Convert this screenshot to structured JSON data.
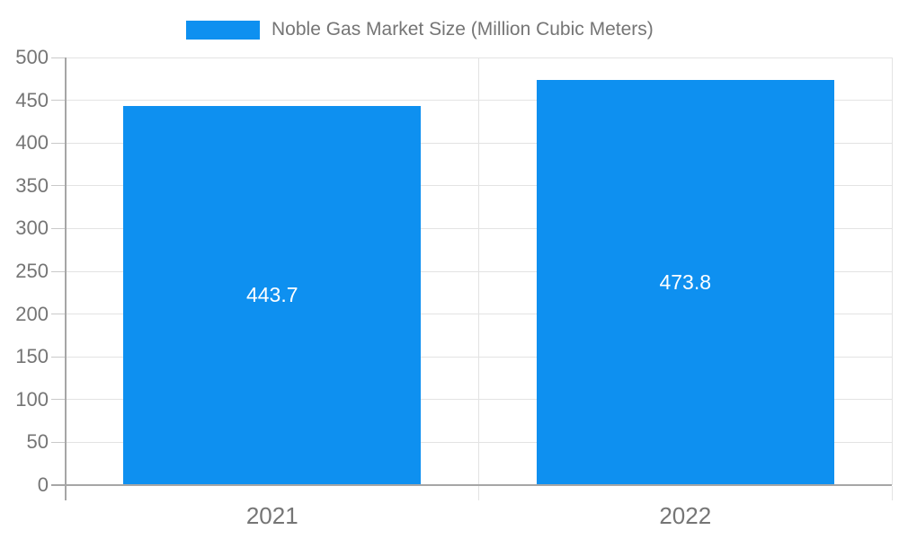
{
  "legend": {
    "label": "Noble Gas Market Size (Million Cubic Meters)"
  },
  "colors": {
    "bar": "#0E90F0",
    "grid_line": "#e3e3e3",
    "axis_line": "#a6a6a6",
    "tick_line": "#c9c9c9",
    "axis_label_text": "#757575",
    "bar_label_text": "#ffffff",
    "background": "#ffffff"
  },
  "chart_data": {
    "type": "bar",
    "title": "Noble Gas Market Size (Million Cubic Meters)",
    "categories": [
      "2021",
      "2022"
    ],
    "series": [
      {
        "name": "Noble Gas Market Size (Million Cubic Meters)",
        "values": [
          443.7,
          473.8
        ],
        "color": "#0E90F0"
      }
    ],
    "value_labels": [
      "443.7",
      "473.8"
    ],
    "xlabel": "",
    "ylabel": "",
    "ylim": [
      0,
      500
    ],
    "ytick_step": 50,
    "yticks": [
      0,
      50,
      100,
      150,
      200,
      250,
      300,
      350,
      400,
      450,
      500
    ],
    "grid": true,
    "legend_position": "top-center",
    "bar_label_position": "inside-middle",
    "bar_width_fraction": 0.72
  }
}
